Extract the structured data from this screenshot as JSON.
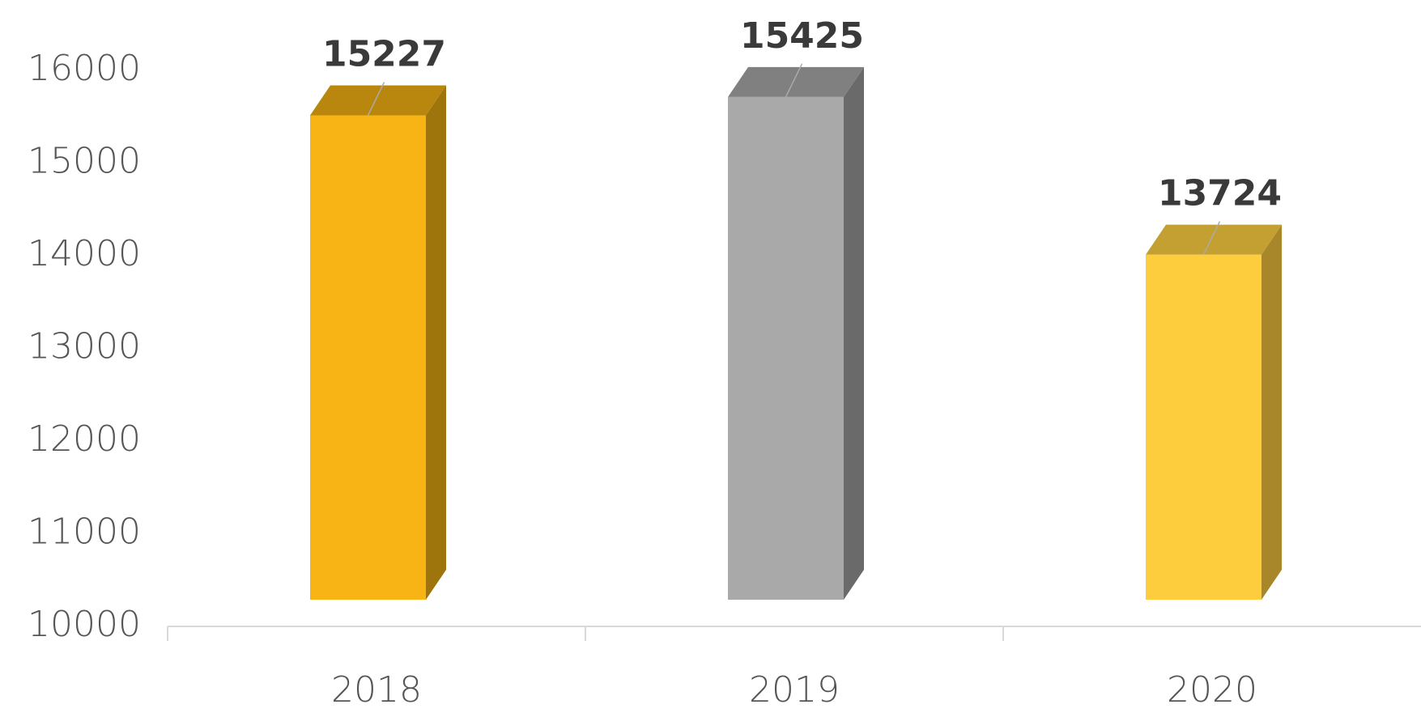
{
  "chart_data": {
    "type": "bar3d",
    "categories": [
      "2018",
      "2019",
      "2020"
    ],
    "values": [
      15227,
      15425,
      13724
    ],
    "colors": [
      "#f8b414",
      "#a9a9a9",
      "#fdcd3e"
    ],
    "top_colors": [
      "#b9870d",
      "#808080",
      "#c4a032"
    ],
    "side_colors": [
      "#9e740c",
      "#6a6a6a",
      "#a8872a"
    ],
    "ylim": [
      10000,
      16000
    ],
    "yticks": [
      10000,
      11000,
      12000,
      13000,
      14000,
      15000,
      16000
    ],
    "grid": false
  }
}
